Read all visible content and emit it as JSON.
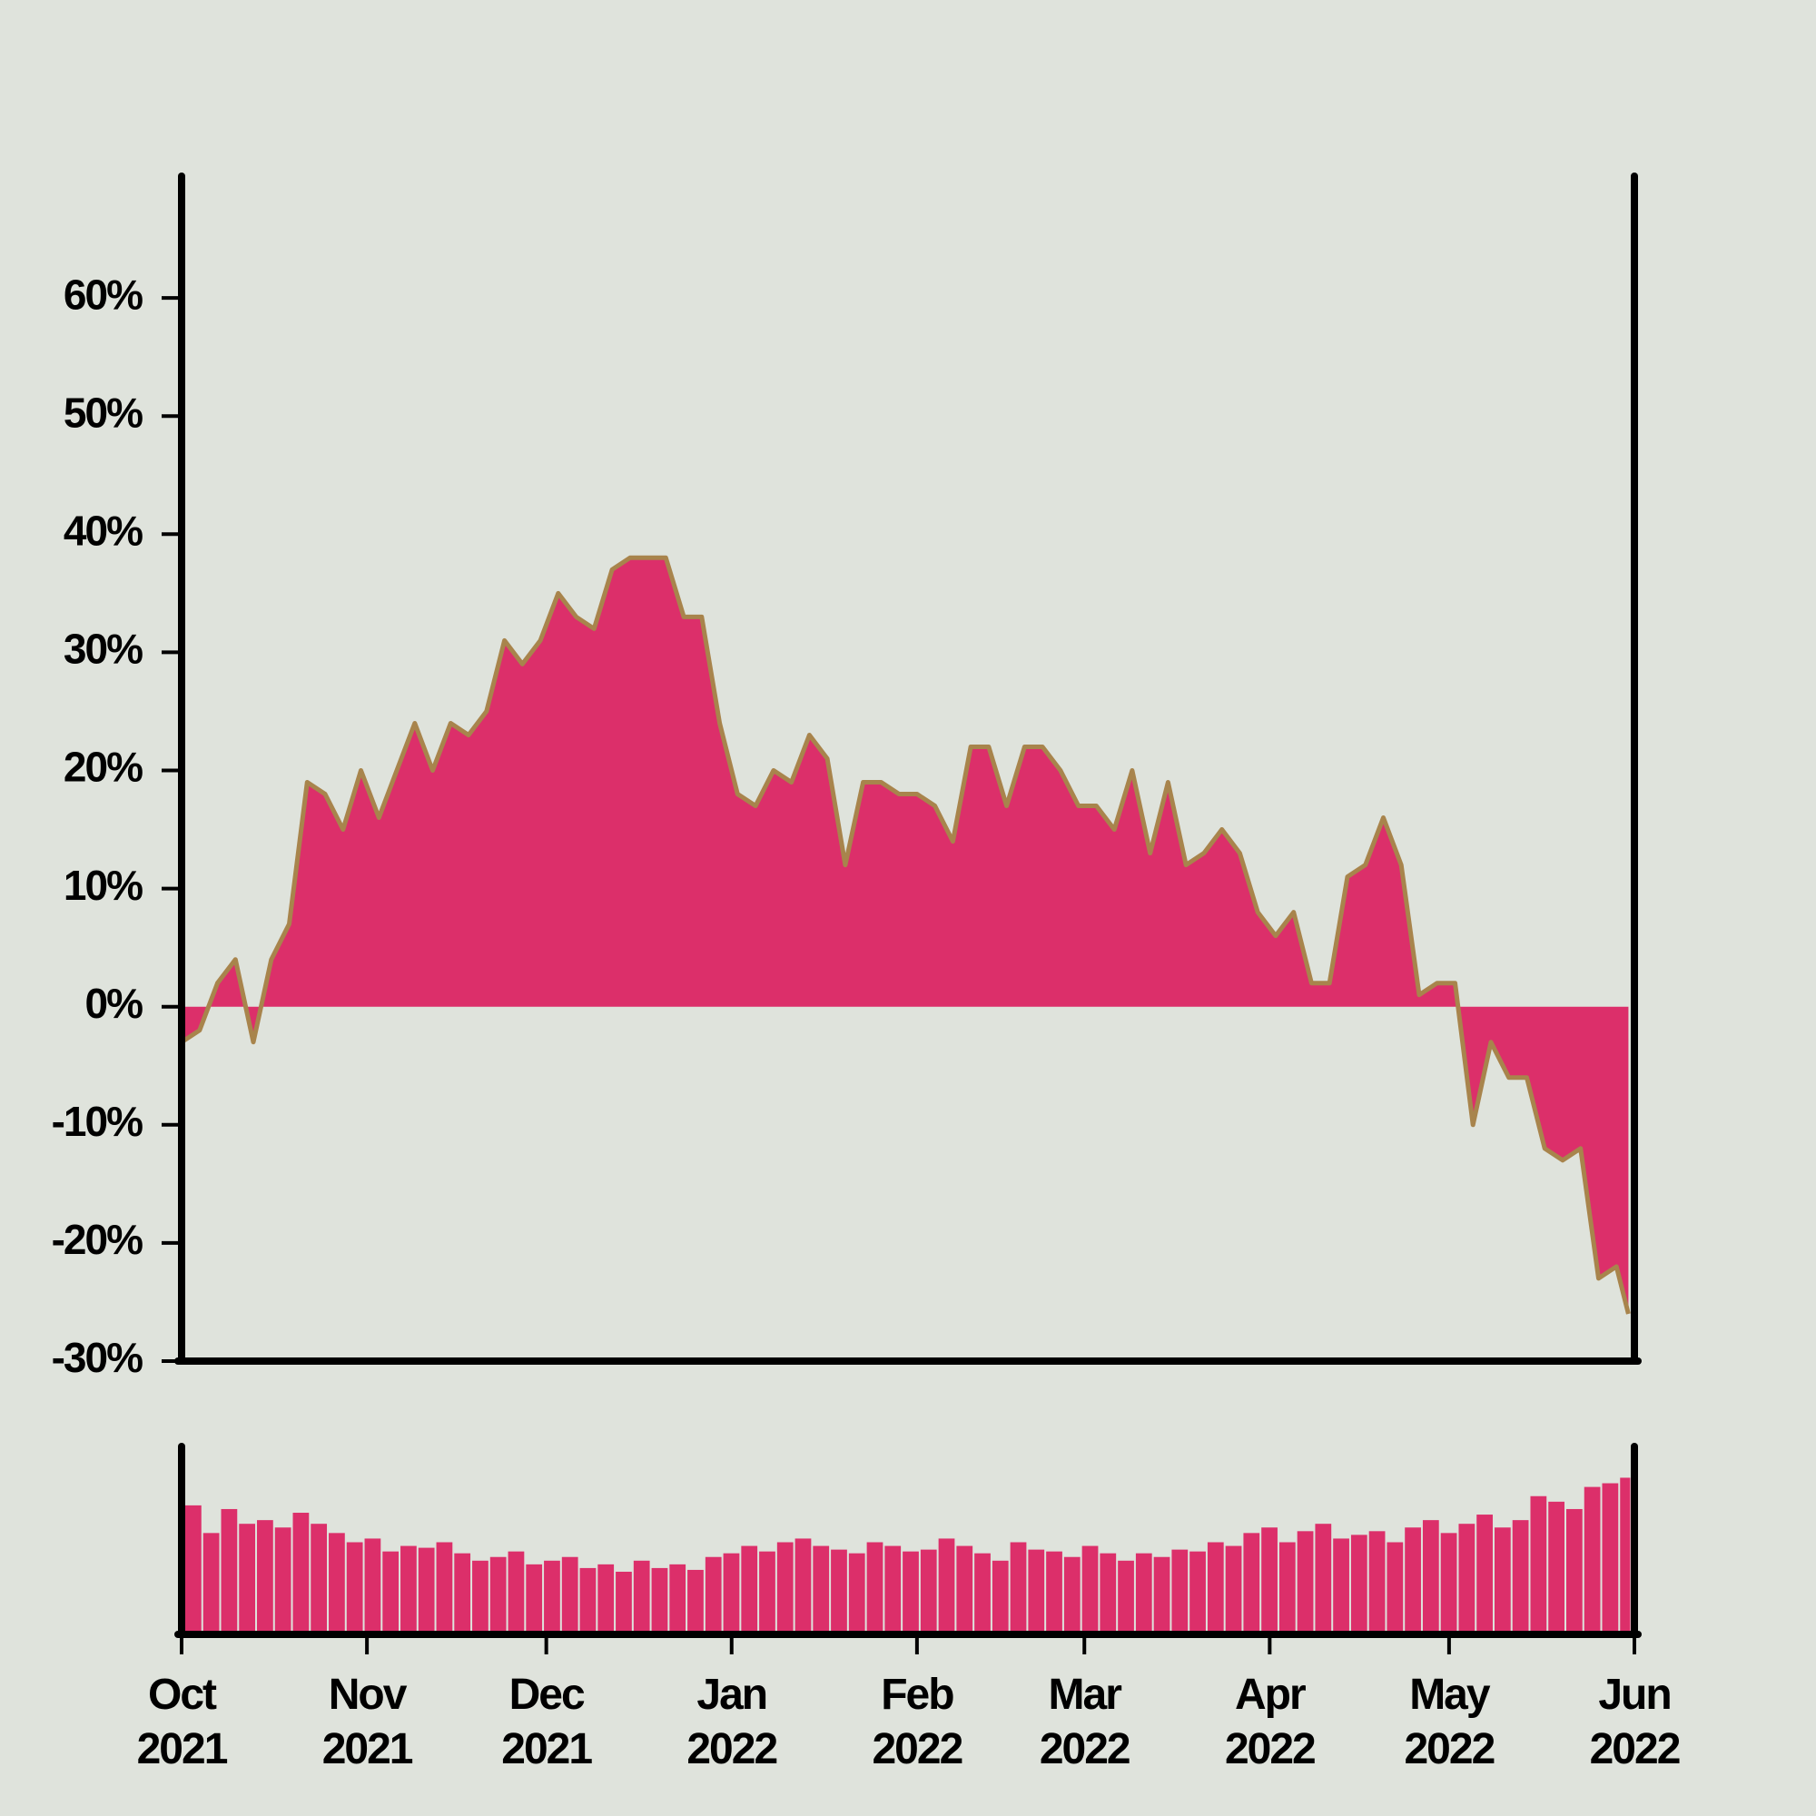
{
  "chart_data": [
    {
      "type": "area",
      "x": [
        0,
        3,
        6,
        9,
        12,
        15,
        18,
        21,
        24,
        27,
        30,
        33,
        36,
        39,
        42,
        45,
        48,
        51,
        54,
        57,
        60,
        63,
        66,
        69,
        72,
        75,
        78,
        81,
        84,
        87,
        90,
        93,
        96,
        99,
        102,
        105,
        108,
        111,
        114,
        117,
        120,
        123,
        126,
        129,
        132,
        135,
        138,
        141,
        144,
        147,
        150,
        153,
        156,
        159,
        162,
        165,
        168,
        171,
        174,
        177,
        180,
        183,
        186,
        189,
        192,
        195,
        198,
        201,
        204,
        207,
        210,
        213,
        216,
        219,
        222,
        225,
        228,
        231,
        234,
        237,
        240,
        242
      ],
      "values": [
        -3,
        -2,
        2,
        4,
        -3,
        4,
        7,
        19,
        18,
        15,
        20,
        16,
        20,
        24,
        20,
        24,
        23,
        25,
        31,
        29,
        31,
        35,
        33,
        32,
        37,
        38,
        38,
        38,
        33,
        33,
        24,
        18,
        17,
        20,
        19,
        23,
        21,
        12,
        19,
        19,
        18,
        18,
        17,
        14,
        22,
        22,
        17,
        22,
        22,
        20,
        17,
        17,
        15,
        20,
        13,
        19,
        12,
        13,
        15,
        13,
        8,
        6,
        8,
        2,
        2,
        11,
        12,
        16,
        12,
        1,
        2,
        2,
        -10,
        -3,
        -6,
        -6,
        -12,
        -13,
        -12,
        -23,
        -22,
        -26
      ],
      "color": "#dc2f6a",
      "line_color": "#a8844c",
      "xlim": [
        0,
        243
      ],
      "ylim": [
        -30,
        70
      ],
      "yticks": [
        {
          "value": -30,
          "label": "-30%"
        },
        {
          "value": -20,
          "label": "-20%"
        },
        {
          "value": -10,
          "label": "-10%"
        },
        {
          "value": 0,
          "label": "0%"
        },
        {
          "value": 10,
          "label": "10%"
        },
        {
          "value": 20,
          "label": "20%"
        },
        {
          "value": 30,
          "label": "30%"
        },
        {
          "value": 40,
          "label": "40%"
        },
        {
          "value": 50,
          "label": "50%"
        },
        {
          "value": 60,
          "label": "60%"
        }
      ]
    },
    {
      "type": "bar",
      "x": [
        0,
        3,
        6,
        9,
        12,
        15,
        18,
        21,
        24,
        27,
        30,
        33,
        36,
        39,
        42,
        45,
        48,
        51,
        54,
        57,
        60,
        63,
        66,
        69,
        72,
        75,
        78,
        81,
        84,
        87,
        90,
        93,
        96,
        99,
        102,
        105,
        108,
        111,
        114,
        117,
        120,
        123,
        126,
        129,
        132,
        135,
        138,
        141,
        144,
        147,
        150,
        153,
        156,
        159,
        162,
        165,
        168,
        171,
        174,
        177,
        180,
        183,
        186,
        189,
        192,
        195,
        198,
        201,
        204,
        207,
        210,
        213,
        216,
        219,
        222,
        225,
        228,
        231,
        234,
        237,
        240,
        242
      ],
      "values": [
        70,
        55,
        68,
        60,
        62,
        58,
        66,
        60,
        55,
        50,
        52,
        45,
        48,
        47,
        50,
        44,
        40,
        42,
        45,
        38,
        40,
        42,
        36,
        38,
        34,
        40,
        36,
        38,
        35,
        42,
        44,
        48,
        45,
        50,
        52,
        48,
        46,
        44,
        50,
        48,
        45,
        46,
        52,
        48,
        44,
        40,
        50,
        46,
        45,
        42,
        48,
        44,
        40,
        44,
        42,
        46,
        45,
        50,
        48,
        55,
        58,
        50,
        56,
        60,
        52,
        54,
        56,
        50,
        58,
        62,
        55,
        60,
        65,
        58,
        62,
        75,
        72,
        68,
        80,
        82,
        85,
        78
      ],
      "color": "#dc2f6a",
      "xlim": [
        0,
        243
      ],
      "ylim": [
        0,
        100
      ],
      "xticks": [
        {
          "value": 0,
          "label": "Oct\n2021"
        },
        {
          "value": 31,
          "label": "Nov\n2021"
        },
        {
          "value": 61,
          "label": "Dec\n2021"
        },
        {
          "value": 92,
          "label": "Jan\n2022"
        },
        {
          "value": 123,
          "label": "Feb\n2022"
        },
        {
          "value": 151,
          "label": "Mar\n2022"
        },
        {
          "value": 182,
          "label": "Apr\n2022"
        },
        {
          "value": 212,
          "label": "May\n2022"
        },
        {
          "value": 243,
          "label": "Jun\n2022"
        }
      ]
    }
  ]
}
